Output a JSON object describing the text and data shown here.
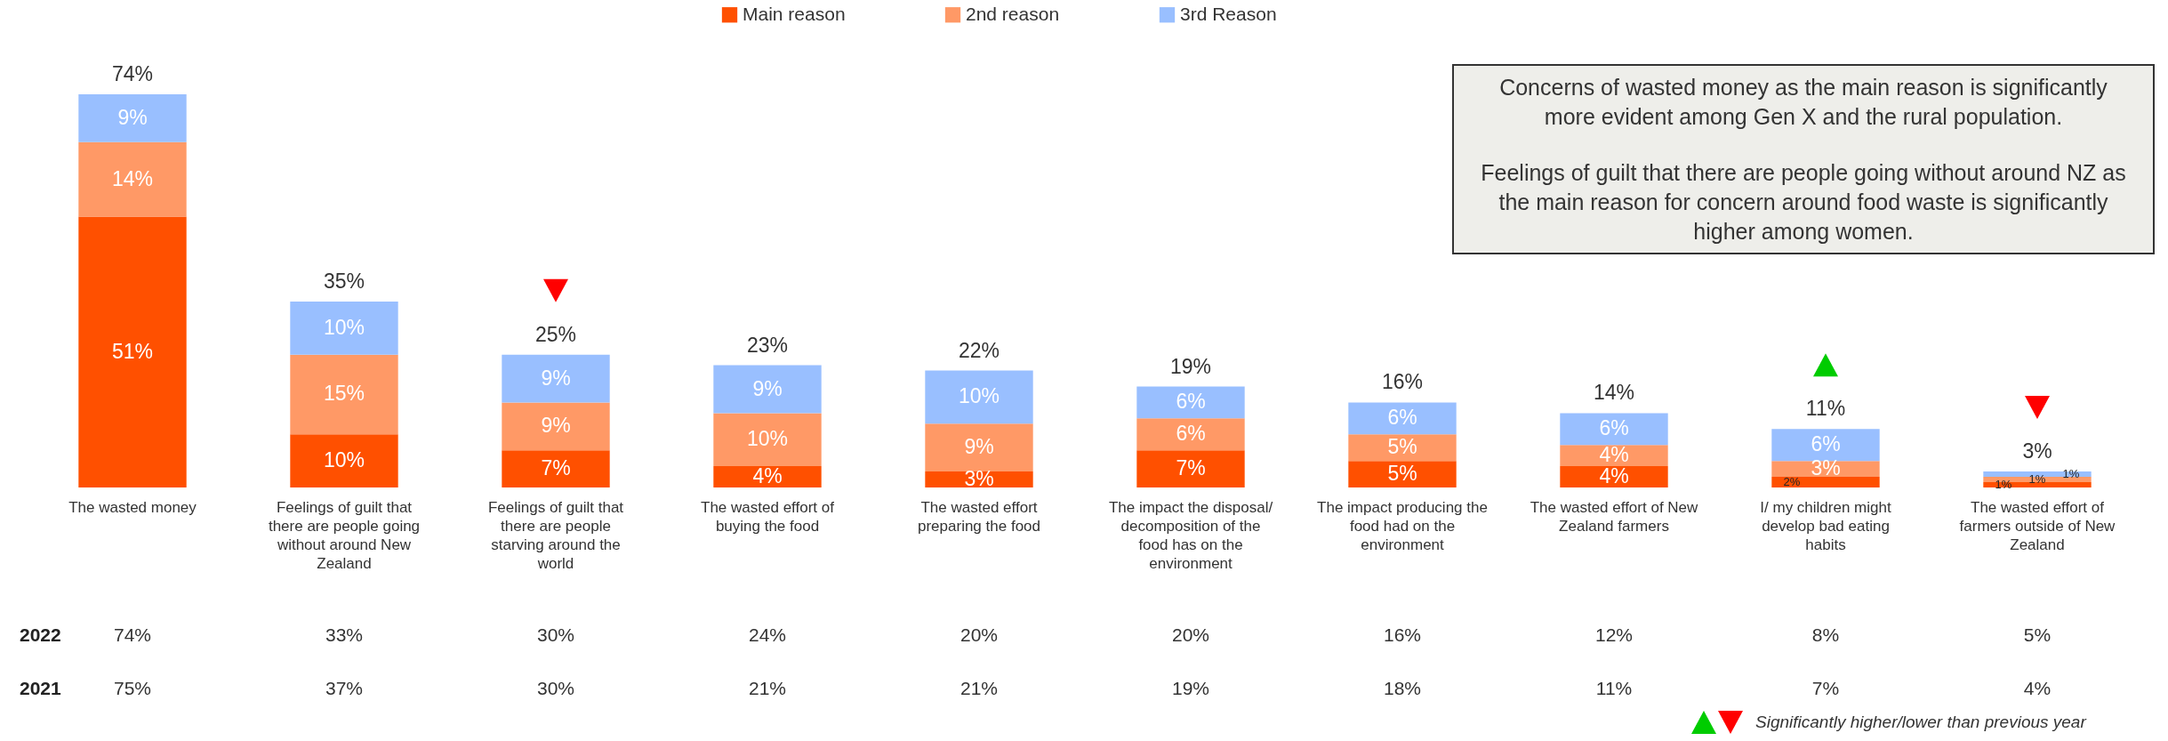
{
  "chart_data": {
    "type": "bar",
    "stacked": true,
    "legend": "top",
    "categories": [
      "The wasted money",
      "Feelings of guilt that there are people going without around New Zealand",
      "Feelings of guilt that there are people starving around the world",
      "The wasted effort of buying the food",
      "The wasted effort preparing the food",
      "The impact the disposal/ decomposition of the food has on the environment",
      "The impact producing the food had on the environment",
      "The wasted effort of New Zealand farmers",
      "I/ my children might develop bad eating habits",
      "The wasted effort of farmers outside of New Zealand"
    ],
    "series": [
      {
        "name": "Main reason",
        "color": "#ff5000",
        "values": [
          51,
          10,
          7,
          4,
          3,
          7,
          5,
          4,
          2,
          1
        ],
        "value_labels": [
          "51%",
          "10%",
          "7%",
          "4%",
          "3%",
          "7%",
          "5%",
          "4%",
          "2%",
          "1%"
        ]
      },
      {
        "name": "2nd reason",
        "color": "#ff9966",
        "values": [
          14,
          15,
          9,
          10,
          9,
          6,
          5,
          4,
          3,
          1
        ],
        "value_labels": [
          "14%",
          "15%",
          "9%",
          "10%",
          "9%",
          "6%",
          "5%",
          "4%",
          "3%",
          "1%"
        ]
      },
      {
        "name": "3rd Reason",
        "color": "#99bfff",
        "values": [
          9,
          10,
          9,
          9,
          10,
          6,
          6,
          6,
          6,
          1
        ],
        "value_labels": [
          "9%",
          "10%",
          "9%",
          "9%",
          "10%",
          "6%",
          "6%",
          "6%",
          "6%",
          "1%"
        ]
      }
    ],
    "totals": [
      "74%",
      "35%",
      "25%",
      "23%",
      "22%",
      "19%",
      "16%",
      "14%",
      "11%",
      "3%"
    ],
    "annotations": [
      "Concerns of wasted money as the main reason is significantly more evident among Gen X and the rural population.",
      "Feelings of guilt that there are people going without around NZ as the main reason for concern around food waste is significantly higher among women.",
      "Significantly higher/lower than previous year",
      "2022",
      "74%",
      "33%",
      "30%",
      "24%",
      "20%",
      "20%",
      "16%",
      "12%",
      "8%",
      "5%",
      "2021",
      "75%",
      "37%",
      "30%",
      "21%",
      "21%",
      "19%",
      "18%",
      "11%",
      "7%",
      "4%"
    ]
  }
}
